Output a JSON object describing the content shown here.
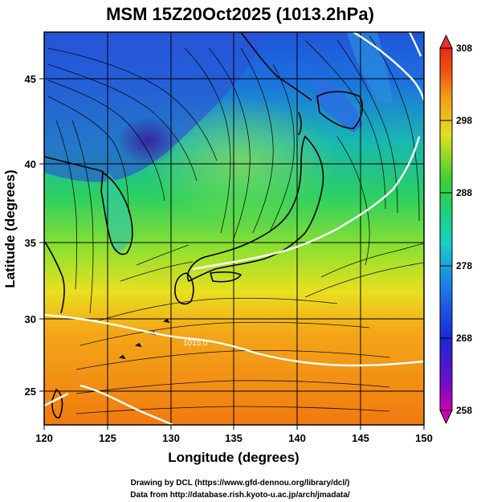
{
  "title": "MSM 15Z20Oct2025 (1013.2hPa)",
  "x_axis": {
    "label": "Longitude (degrees)",
    "ticks": [
      "120",
      "125",
      "130",
      "135",
      "140",
      "145",
      "150"
    ]
  },
  "y_axis": {
    "label": "Latitude  (degrees)",
    "ticks": [
      "25",
      "30",
      "35",
      "40",
      "45"
    ]
  },
  "colorbar": {
    "ticks": [
      "258",
      "268",
      "278",
      "288",
      "298",
      "308"
    ]
  },
  "contour_labels": [
    "1015.0"
  ],
  "credits": {
    "line1": "Drawing by DCL (https://www.gfd-dennou.org/library/dcl/)",
    "line2": "Data from http://database.rish.kyoto-u.ac.jp/arch/jmadata/"
  },
  "colors": {
    "ocean_warm": "#f07a10",
    "ocean_mild": "#9fe030",
    "land_cool": "#2f62d8",
    "cold_core": "#3a1f9c",
    "isobar": "#ffffff",
    "streamline": "#000000",
    "grid": "#000000"
  },
  "map_extent": {
    "lon_range": [
      120,
      150
    ],
    "lat_range": [
      23,
      48
    ]
  },
  "field": "temperature (K) with streamlines, coastlines and isobars"
}
